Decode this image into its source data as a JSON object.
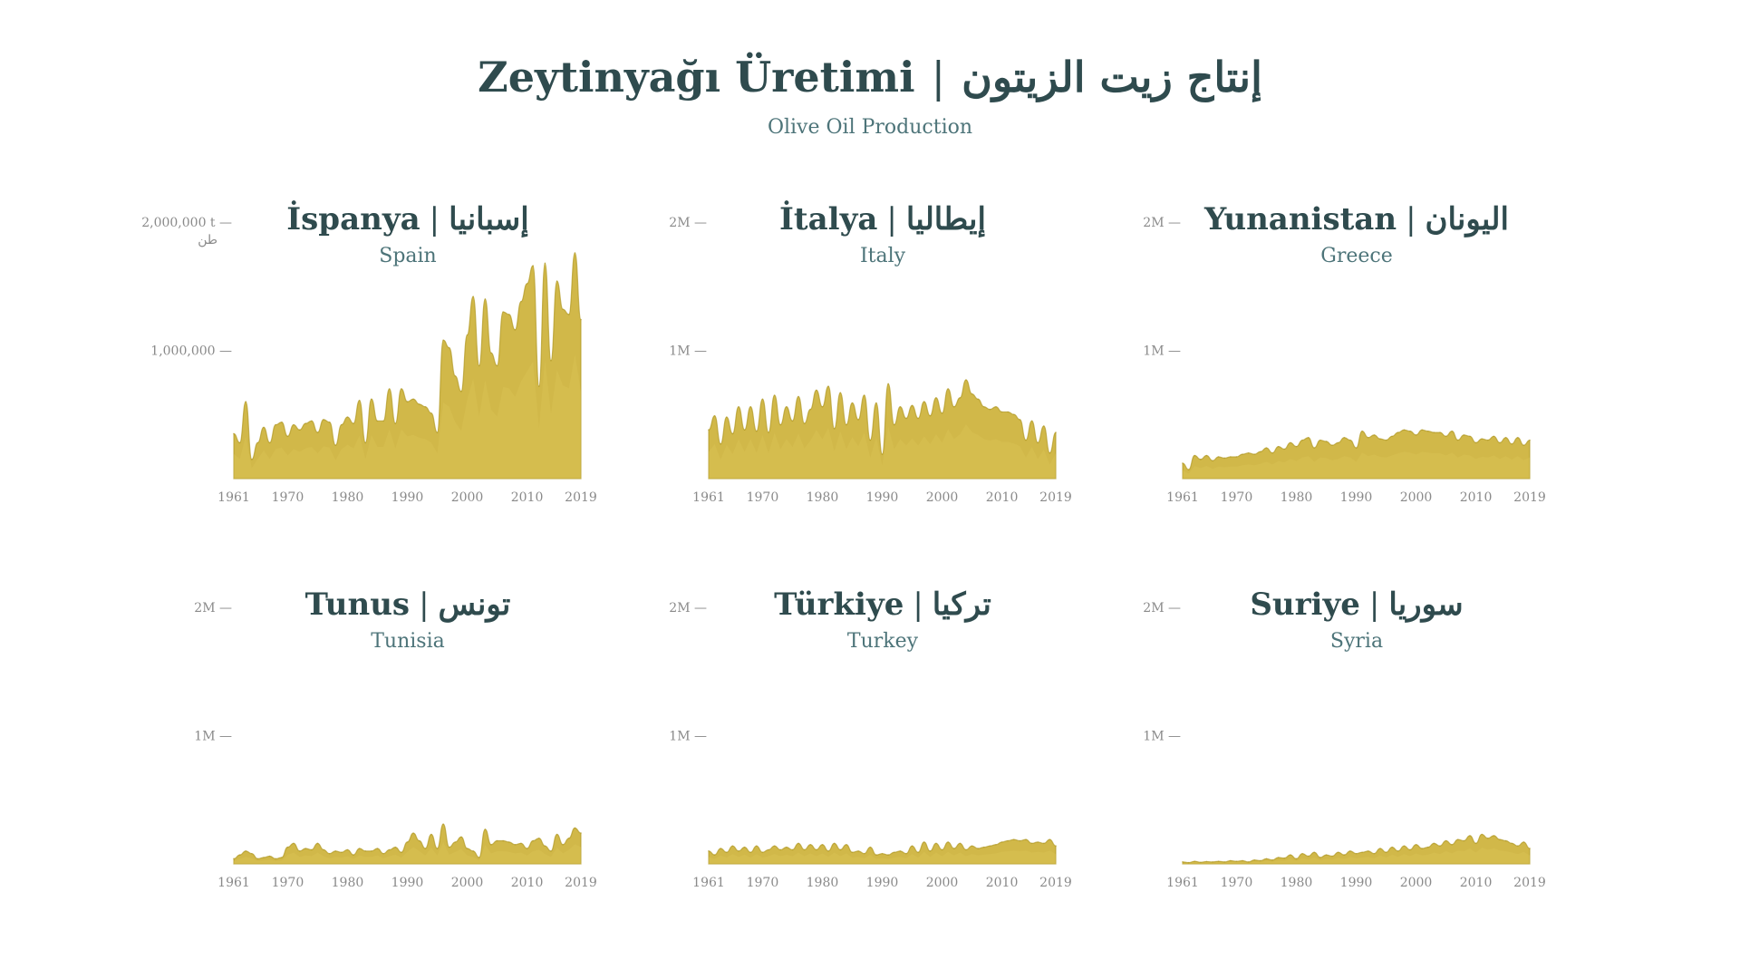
{
  "header": {
    "title_tr": "Zeytinyağı Üretimi",
    "title_sep": "|",
    "title_ar": "إنتاج زيت الزيتون",
    "subtitle": "Olive Oil Production"
  },
  "colors": {
    "fill": "#cdb23a",
    "fill_light": "#ddc659",
    "stroke": "#b09824",
    "title": "#2f4b4e",
    "subtitle": "#4d7479",
    "axis": "#8a8a8a"
  },
  "chart_data": [
    {
      "type": "area",
      "title": "İspanya | إسبانيا",
      "title_tr": "İspanya",
      "title_ar": "إسبانيا",
      "subtitle": "Spain",
      "ylim": [
        0,
        2000000
      ],
      "yticks": [
        {
          "value": 2000000,
          "label": "2,000,000 t —"
        },
        {
          "value": 1000000,
          "label": "1,000,000 —"
        }
      ],
      "yunit_ar": "طن",
      "xticks": [
        1961,
        1970,
        1980,
        1990,
        2000,
        2010,
        2019
      ],
      "x": [
        1961,
        1962,
        1963,
        1964,
        1965,
        1966,
        1967,
        1968,
        1969,
        1970,
        1971,
        1972,
        1973,
        1974,
        1975,
        1976,
        1977,
        1978,
        1979,
        1980,
        1981,
        1982,
        1983,
        1984,
        1985,
        1986,
        1987,
        1988,
        1989,
        1990,
        1991,
        1992,
        1993,
        1994,
        1995,
        1996,
        1997,
        1998,
        1999,
        2000,
        2001,
        2002,
        2003,
        2004,
        2005,
        2006,
        2007,
        2008,
        2009,
        2010,
        2011,
        2012,
        2013,
        2014,
        2015,
        2016,
        2017,
        2018,
        2019
      ],
      "values": [
        350000,
        280000,
        600000,
        150000,
        280000,
        400000,
        280000,
        420000,
        440000,
        330000,
        420000,
        380000,
        430000,
        450000,
        360000,
        460000,
        440000,
        260000,
        420000,
        480000,
        430000,
        610000,
        280000,
        620000,
        450000,
        450000,
        700000,
        430000,
        700000,
        600000,
        620000,
        580000,
        560000,
        510000,
        360000,
        1080000,
        1020000,
        800000,
        680000,
        1120000,
        1420000,
        880000,
        1400000,
        980000,
        880000,
        1300000,
        1280000,
        1160000,
        1380000,
        1520000,
        1660000,
        720000,
        1680000,
        920000,
        1540000,
        1320000,
        1280000,
        1760000,
        1240000
      ]
    },
    {
      "type": "area",
      "title": "İtalya | إيطاليا",
      "title_tr": "İtalya",
      "title_ar": "إيطاليا",
      "subtitle": "Italy",
      "ylim": [
        0,
        2000000
      ],
      "yticks": [
        {
          "value": 2000000,
          "label": "2M —"
        },
        {
          "value": 1000000,
          "label": "1M —"
        }
      ],
      "xticks": [
        1961,
        1970,
        1980,
        1990,
        2000,
        2010,
        2019
      ],
      "x": [
        1961,
        1962,
        1963,
        1964,
        1965,
        1966,
        1967,
        1968,
        1969,
        1970,
        1971,
        1972,
        1973,
        1974,
        1975,
        1976,
        1977,
        1978,
        1979,
        1980,
        1981,
        1982,
        1983,
        1984,
        1985,
        1986,
        1987,
        1988,
        1989,
        1990,
        1991,
        1992,
        1993,
        1994,
        1995,
        1996,
        1997,
        1998,
        1999,
        2000,
        2001,
        2002,
        2003,
        2004,
        2005,
        2006,
        2007,
        2008,
        2009,
        2010,
        2011,
        2012,
        2013,
        2014,
        2015,
        2016,
        2017,
        2018,
        2019
      ],
      "values": [
        380000,
        490000,
        270000,
        480000,
        350000,
        560000,
        380000,
        560000,
        370000,
        620000,
        360000,
        650000,
        420000,
        560000,
        450000,
        640000,
        430000,
        540000,
        690000,
        560000,
        720000,
        390000,
        670000,
        420000,
        590000,
        460000,
        650000,
        300000,
        590000,
        190000,
        740000,
        420000,
        560000,
        470000,
        570000,
        470000,
        600000,
        490000,
        630000,
        510000,
        700000,
        560000,
        630000,
        770000,
        660000,
        620000,
        560000,
        540000,
        560000,
        520000,
        520000,
        500000,
        460000,
        300000,
        450000,
        280000,
        410000,
        200000,
        360000
      ]
    },
    {
      "type": "area",
      "title": "Yunanistan | اليونان",
      "title_tr": "Yunanistan",
      "title_ar": "اليونان",
      "subtitle": "Greece",
      "ylim": [
        0,
        2000000
      ],
      "yticks": [
        {
          "value": 2000000,
          "label": "2M —"
        },
        {
          "value": 1000000,
          "label": "1M —"
        }
      ],
      "xticks": [
        1961,
        1970,
        1980,
        1990,
        2000,
        2010,
        2019
      ],
      "x": [
        1961,
        1962,
        1963,
        1964,
        1965,
        1966,
        1967,
        1968,
        1969,
        1970,
        1971,
        1972,
        1973,
        1974,
        1975,
        1976,
        1977,
        1978,
        1979,
        1980,
        1981,
        1982,
        1983,
        1984,
        1985,
        1986,
        1987,
        1988,
        1989,
        1990,
        1991,
        1992,
        1993,
        1994,
        1995,
        1996,
        1997,
        1998,
        1999,
        2000,
        2001,
        2002,
        2003,
        2004,
        2005,
        2006,
        2007,
        2008,
        2009,
        2010,
        2011,
        2012,
        2013,
        2014,
        2015,
        2016,
        2017,
        2018,
        2019
      ],
      "values": [
        120000,
        70000,
        180000,
        150000,
        180000,
        140000,
        170000,
        160000,
        170000,
        170000,
        190000,
        200000,
        190000,
        210000,
        240000,
        200000,
        250000,
        230000,
        280000,
        250000,
        300000,
        320000,
        240000,
        300000,
        290000,
        260000,
        280000,
        320000,
        300000,
        240000,
        370000,
        320000,
        340000,
        310000,
        300000,
        330000,
        360000,
        380000,
        370000,
        340000,
        380000,
        370000,
        360000,
        360000,
        330000,
        370000,
        300000,
        340000,
        330000,
        280000,
        310000,
        300000,
        330000,
        280000,
        320000,
        270000,
        320000,
        260000,
        300000
      ]
    },
    {
      "type": "area",
      "title": "Tunus | تونس",
      "title_tr": "Tunus",
      "title_ar": "تونس",
      "subtitle": "Tunisia",
      "ylim": [
        0,
        2000000
      ],
      "yticks": [
        {
          "value": 2000000,
          "label": "2M —"
        },
        {
          "value": 1000000,
          "label": "1M —"
        }
      ],
      "xticks": [
        1961,
        1970,
        1980,
        1990,
        2000,
        2010,
        2019
      ],
      "x": [
        1961,
        1962,
        1963,
        1964,
        1965,
        1966,
        1967,
        1968,
        1969,
        1970,
        1971,
        1972,
        1973,
        1974,
        1975,
        1976,
        1977,
        1978,
        1979,
        1980,
        1981,
        1982,
        1983,
        1984,
        1985,
        1986,
        1987,
        1988,
        1989,
        1990,
        1991,
        1992,
        1993,
        1994,
        1995,
        1996,
        1997,
        1998,
        1999,
        2000,
        2001,
        2002,
        2003,
        2004,
        2005,
        2006,
        2007,
        2008,
        2009,
        2010,
        2011,
        2012,
        2013,
        2014,
        2015,
        2016,
        2017,
        2018,
        2019
      ],
      "values": [
        40000,
        70000,
        100000,
        80000,
        40000,
        50000,
        60000,
        40000,
        50000,
        130000,
        160000,
        100000,
        120000,
        110000,
        160000,
        110000,
        80000,
        100000,
        90000,
        110000,
        70000,
        120000,
        100000,
        100000,
        120000,
        80000,
        110000,
        130000,
        90000,
        170000,
        240000,
        180000,
        120000,
        230000,
        120000,
        310000,
        130000,
        170000,
        210000,
        120000,
        100000,
        50000,
        270000,
        150000,
        180000,
        180000,
        170000,
        150000,
        160000,
        120000,
        180000,
        200000,
        140000,
        100000,
        230000,
        150000,
        200000,
        280000,
        240000
      ]
    },
    {
      "type": "area",
      "title": "Türkiye | تركيا",
      "title_tr": "Türkiye",
      "title_ar": "تركيا",
      "subtitle": "Turkey",
      "ylim": [
        0,
        2000000
      ],
      "yticks": [
        {
          "value": 2000000,
          "label": "2M —"
        },
        {
          "value": 1000000,
          "label": "1M —"
        }
      ],
      "xticks": [
        1961,
        1970,
        1980,
        1990,
        2000,
        2010,
        2019
      ],
      "x": [
        1961,
        1962,
        1963,
        1964,
        1965,
        1966,
        1967,
        1968,
        1969,
        1970,
        1971,
        1972,
        1973,
        1974,
        1975,
        1976,
        1977,
        1978,
        1979,
        1980,
        1981,
        1982,
        1983,
        1984,
        1985,
        1986,
        1987,
        1988,
        1989,
        1990,
        1991,
        1992,
        1993,
        1994,
        1995,
        1996,
        1997,
        1998,
        1999,
        2000,
        2001,
        2002,
        2003,
        2004,
        2005,
        2006,
        2007,
        2008,
        2009,
        2010,
        2011,
        2012,
        2013,
        2014,
        2015,
        2016,
        2017,
        2018,
        2019
      ],
      "values": [
        100000,
        70000,
        120000,
        90000,
        140000,
        100000,
        130000,
        90000,
        140000,
        90000,
        110000,
        140000,
        110000,
        130000,
        110000,
        160000,
        110000,
        150000,
        110000,
        150000,
        100000,
        160000,
        110000,
        150000,
        90000,
        100000,
        80000,
        130000,
        70000,
        80000,
        70000,
        90000,
        100000,
        80000,
        140000,
        90000,
        170000,
        100000,
        160000,
        110000,
        170000,
        120000,
        160000,
        110000,
        140000,
        120000,
        130000,
        140000,
        150000,
        170000,
        180000,
        190000,
        180000,
        190000,
        160000,
        170000,
        160000,
        190000,
        140000
      ]
    },
    {
      "type": "area",
      "title": "Suriye | سوريا",
      "title_tr": "Suriye",
      "title_ar": "سوريا",
      "subtitle": "Syria",
      "ylim": [
        0,
        2000000
      ],
      "yticks": [
        {
          "value": 2000000,
          "label": "2M —"
        },
        {
          "value": 1000000,
          "label": "1M —"
        }
      ],
      "xticks": [
        1961,
        1970,
        1980,
        1990,
        2000,
        2010,
        2019
      ],
      "x": [
        1961,
        1962,
        1963,
        1964,
        1965,
        1966,
        1967,
        1968,
        1969,
        1970,
        1971,
        1972,
        1973,
        1974,
        1975,
        1976,
        1977,
        1978,
        1979,
        1980,
        1981,
        1982,
        1983,
        1984,
        1985,
        1986,
        1987,
        1988,
        1989,
        1990,
        1991,
        1992,
        1993,
        1994,
        1995,
        1996,
        1997,
        1998,
        1999,
        2000,
        2001,
        2002,
        2003,
        2004,
        2005,
        2006,
        2007,
        2008,
        2009,
        2010,
        2011,
        2012,
        2013,
        2014,
        2015,
        2016,
        2017,
        2018,
        2019
      ],
      "values": [
        15000,
        10000,
        20000,
        12000,
        18000,
        15000,
        20000,
        15000,
        25000,
        20000,
        25000,
        15000,
        30000,
        25000,
        40000,
        30000,
        50000,
        45000,
        70000,
        40000,
        80000,
        60000,
        90000,
        50000,
        70000,
        60000,
        90000,
        70000,
        100000,
        80000,
        90000,
        100000,
        80000,
        120000,
        90000,
        130000,
        100000,
        140000,
        110000,
        150000,
        120000,
        130000,
        160000,
        140000,
        180000,
        150000,
        190000,
        180000,
        220000,
        160000,
        230000,
        200000,
        220000,
        190000,
        180000,
        160000,
        140000,
        170000,
        120000
      ]
    }
  ]
}
